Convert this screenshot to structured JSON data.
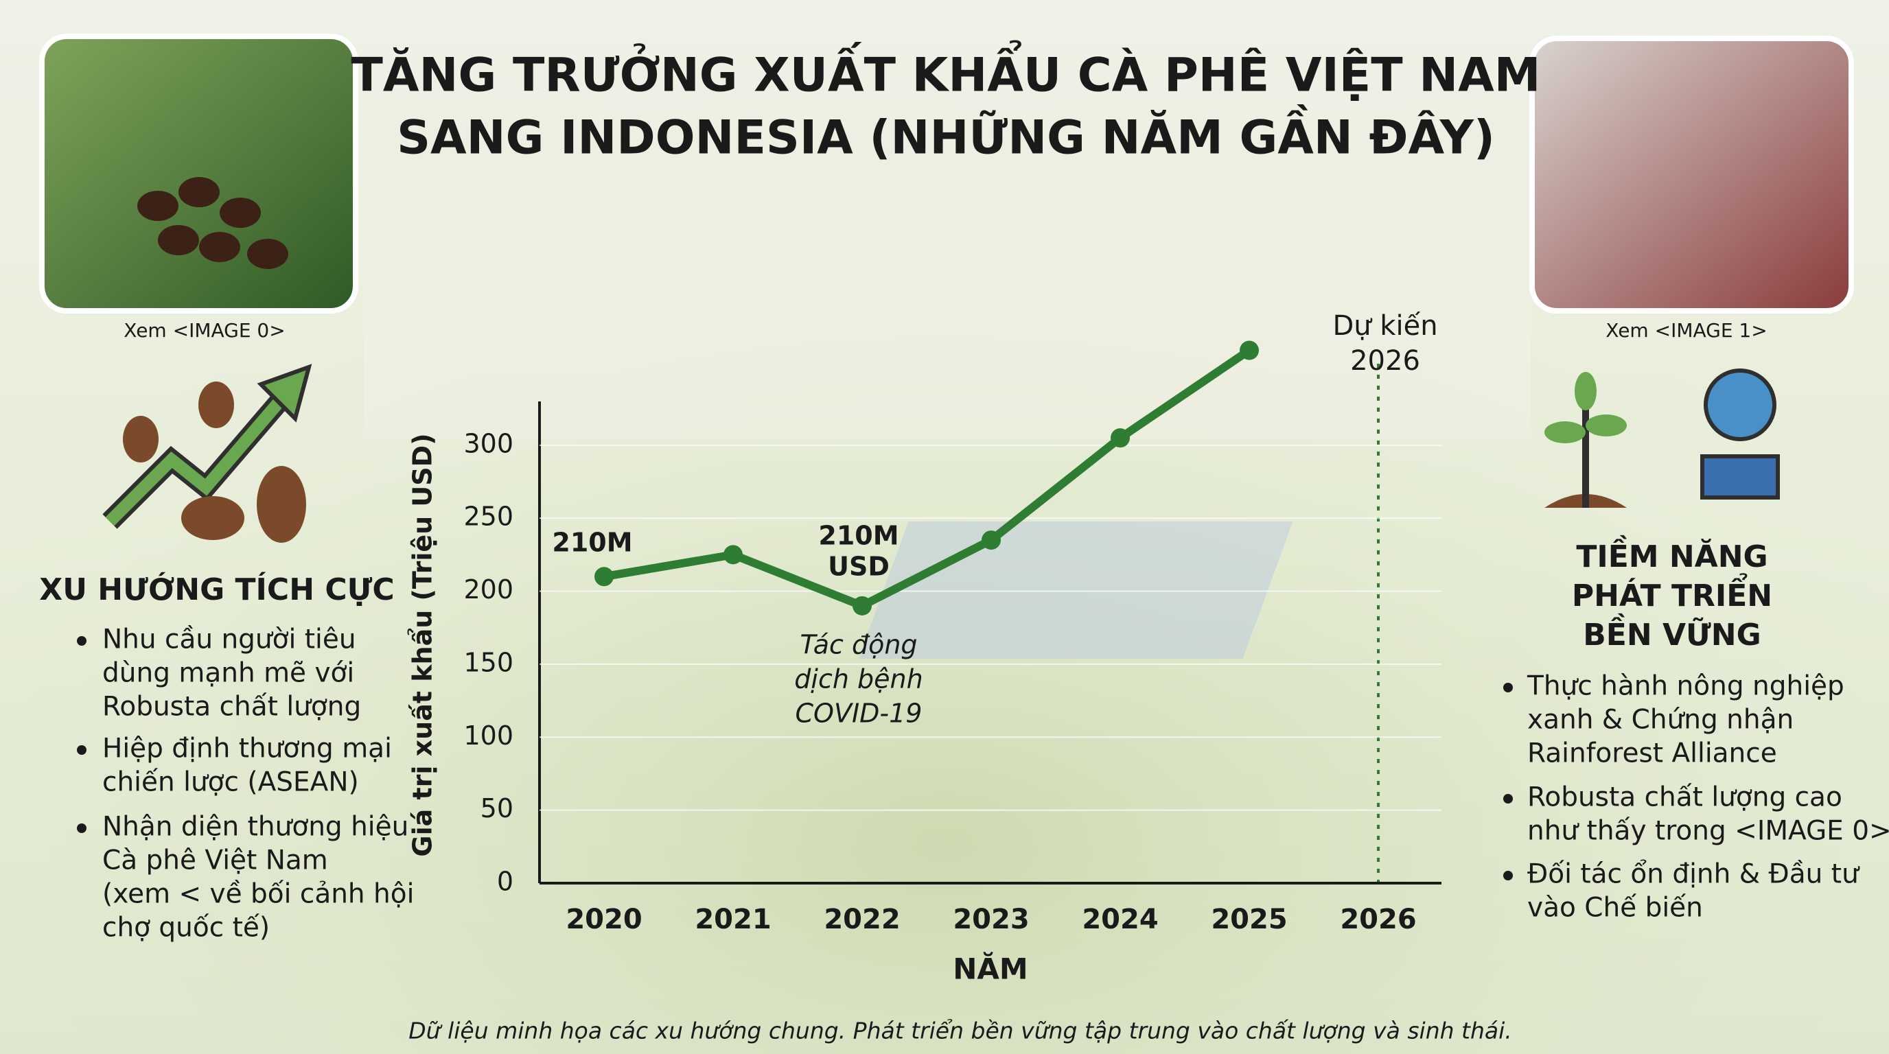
{
  "header": {
    "title": [
      "TĂNG TRƯỞNG XUẤT KHẨU CÀ PHÊ VIỆT NAM",
      "SANG INDONESIA (NHỮNG NĂM GẦN ĐÂY)"
    ]
  },
  "chart_data": {
    "type": "line",
    "categories": [
      "2020",
      "2021",
      "2022",
      "2023",
      "2024",
      "2025",
      "2026"
    ],
    "values": [
      210,
      225,
      190,
      235,
      305,
      365,
      null
    ],
    "color": "#2e7d32",
    "ylim": [
      0,
      330
    ],
    "yticks": [
      0,
      50,
      100,
      150,
      200,
      250,
      300
    ],
    "grid": true,
    "y_label": "Giá trị xuất khẩu (Triệu USD)",
    "x_label": "NĂM",
    "annotations": [
      [
        "210M"
      ],
      [
        "210M",
        "USD"
      ],
      [
        "Tác động",
        "dịch bệnh",
        "COVID-19"
      ],
      [
        "Dự kiến",
        "2026"
      ]
    ]
  },
  "left_panel": {
    "caption": "Xem <IMAGE 0>",
    "heading": "XU HƯỚNG TÍCH CỰC",
    "bullets": [
      [
        "Nhu cầu người tiêu",
        "dùng mạnh mẽ với",
        "Robusta chất lượng"
      ],
      [
        "Hiệp định thương mại",
        "chiến lược (ASEAN)"
      ],
      [
        "Nhận diện thương hiệu",
        "Cà phê Việt Nam",
        "(xem < về bối cảnh hội",
        "chợ quốc tế)"
      ]
    ]
  },
  "right_panel": {
    "caption": "Xem <IMAGE 1>",
    "heading": [
      "TIỀM NĂNG",
      "PHÁT TRIỂN",
      "BỀN VỮNG"
    ],
    "bullets": [
      [
        "Thực hành nông nghiệp",
        "xanh & Chứng nhận",
        "Rainforest Alliance"
      ],
      [
        "Robusta chất lượng cao",
        "như thấy trong <IMAGE 0>"
      ],
      [
        "Đối tác ổn định & Đầu tư",
        "vào Chế biến"
      ]
    ]
  },
  "footer": "Dữ liệu minh họa các xu hướng chung. Phát triển bền vững tập trung vào chất lượng và sinh thái."
}
